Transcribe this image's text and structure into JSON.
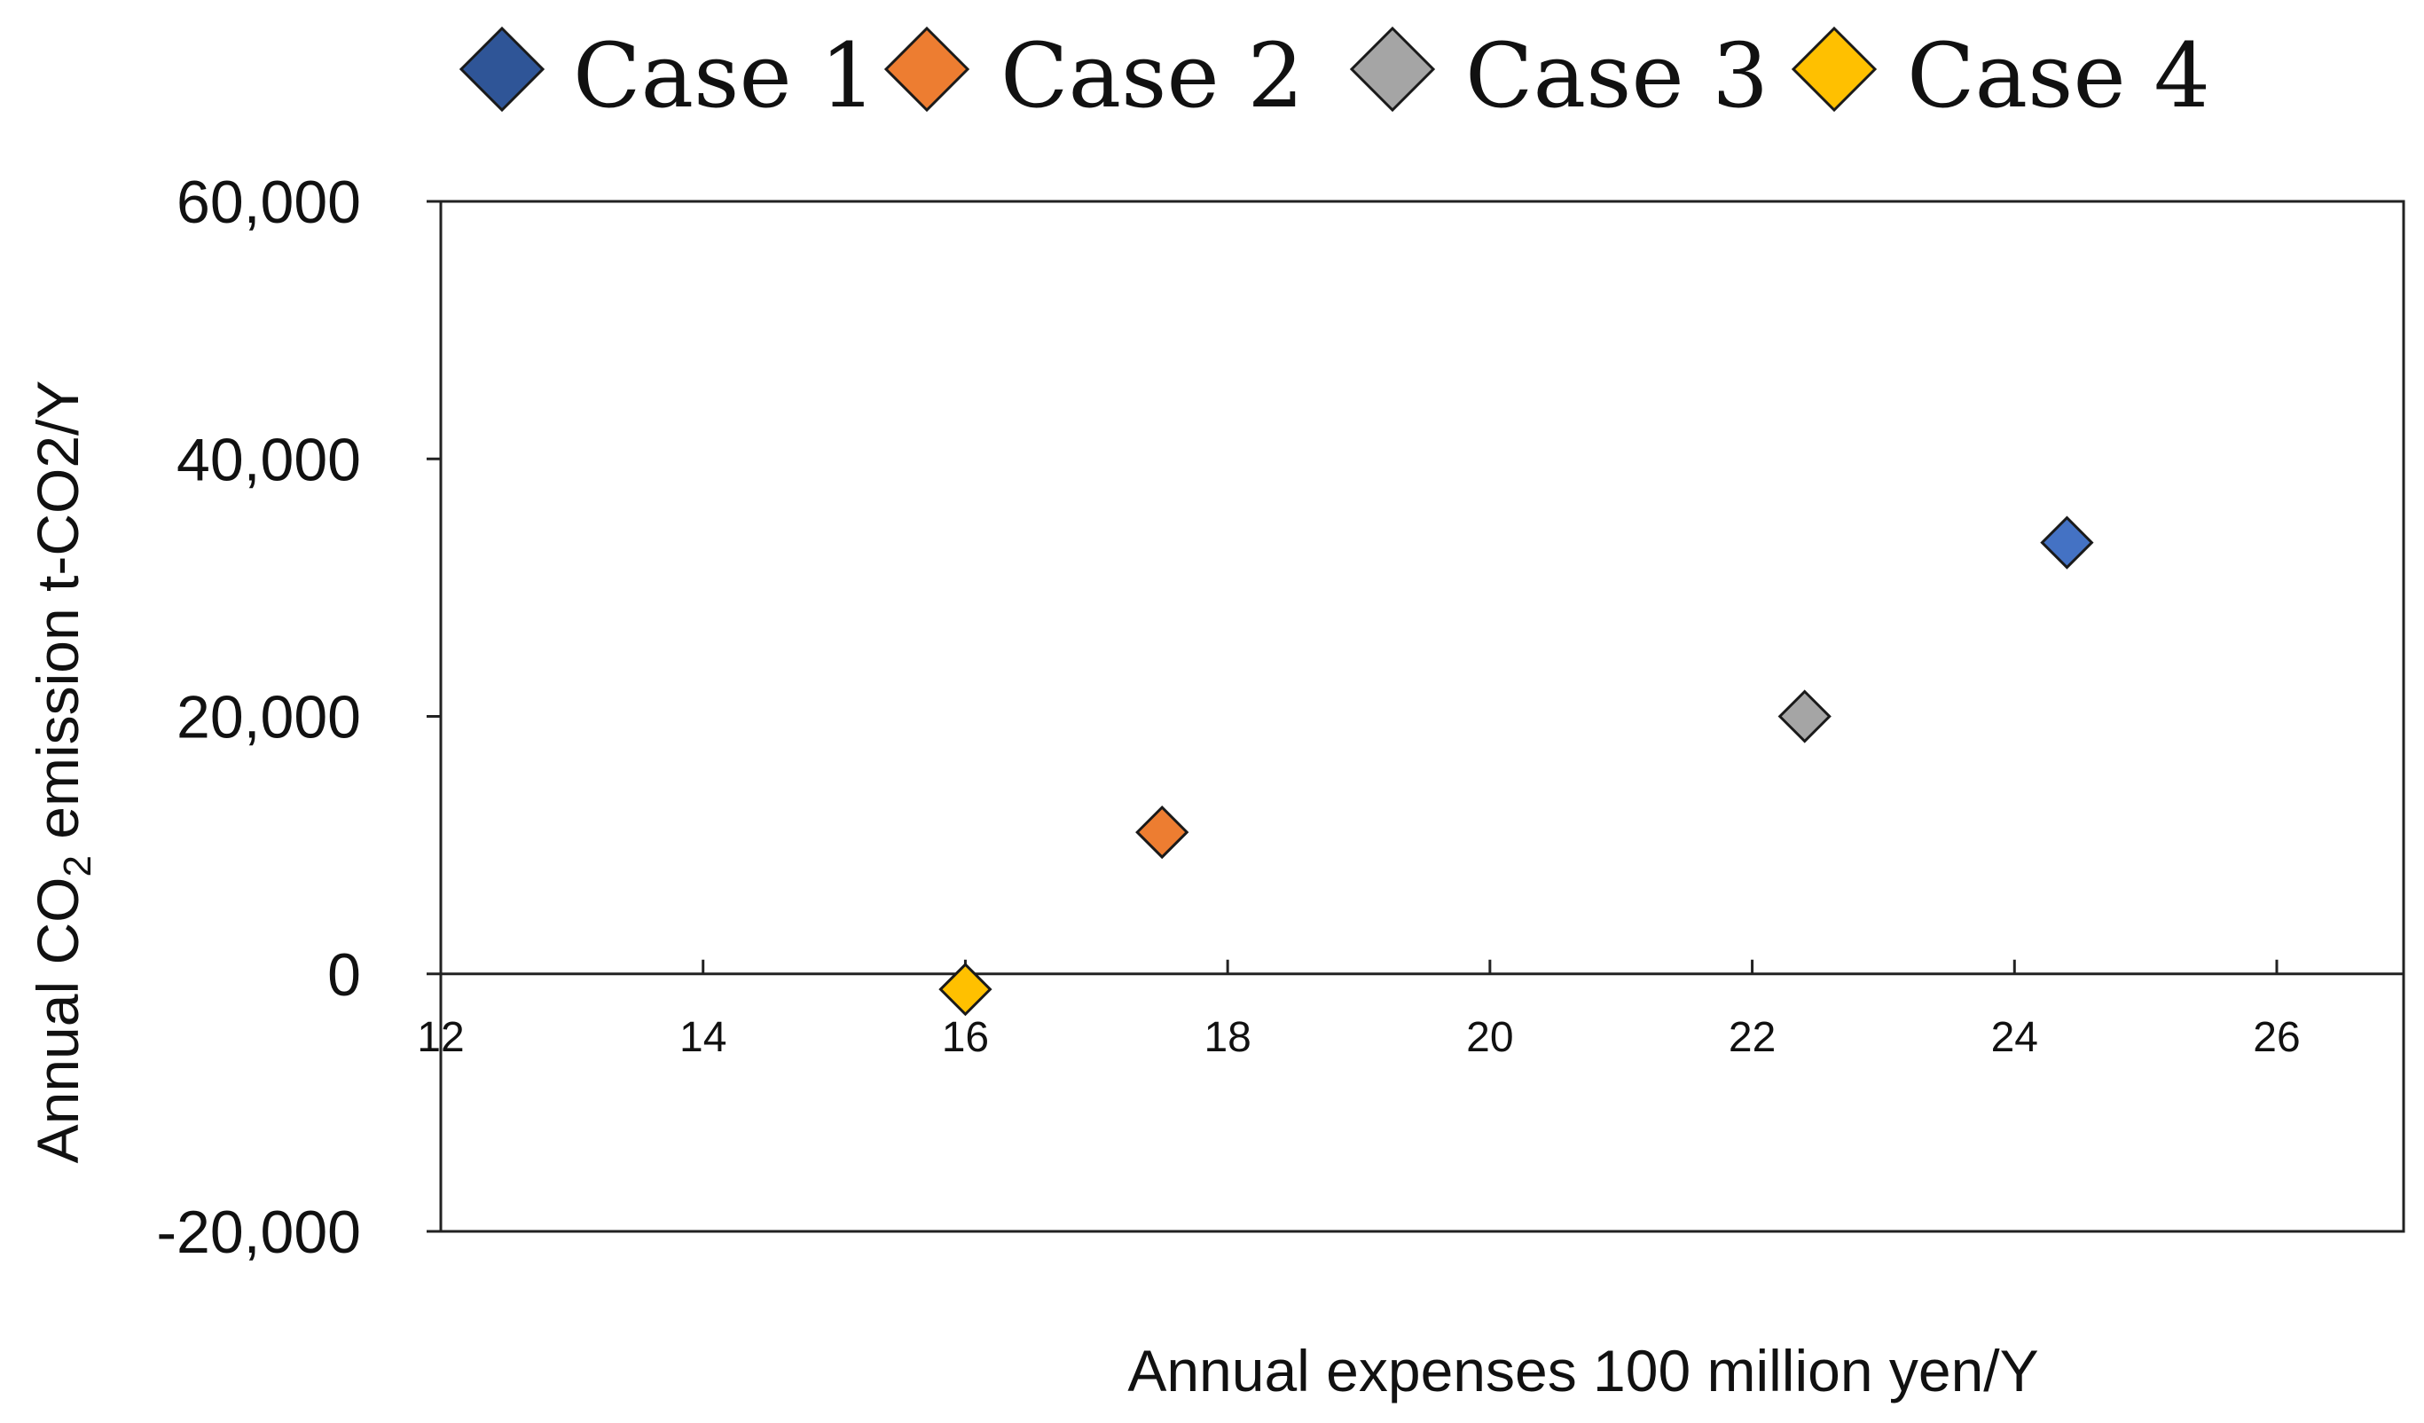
{
  "chart_data": {
    "type": "scatter",
    "title": "",
    "xlabel": "Annual expenses 100 million yen/Y",
    "ylabel": {
      "prefix": "Annual CO",
      "subscript": "2",
      "suffix": " emission t-CO2/Y"
    },
    "xlim": [
      12,
      27
    ],
    "ylim": [
      -20000,
      60000
    ],
    "x_ticks": [
      12,
      14,
      16,
      18,
      20,
      22,
      24,
      26
    ],
    "x_tick_labels": [
      "12",
      "14",
      "16",
      "18",
      "20",
      "22",
      "24",
      "26"
    ],
    "y_ticks": [
      -20000,
      0,
      20000,
      40000,
      60000
    ],
    "y_tick_labels": [
      "-20,000",
      "0",
      "20,000",
      "40,000",
      "60,000"
    ],
    "grid": false,
    "legend_position": "top",
    "marker": "diamond",
    "series": [
      {
        "name": "Case 1",
        "color": "#4472C4",
        "legend_color": "#2F5597",
        "x": [
          24.4
        ],
        "y": [
          33500
        ]
      },
      {
        "name": "Case 2",
        "color": "#ED7D31",
        "legend_color": "#ED7D31",
        "x": [
          17.5
        ],
        "y": [
          11000
        ]
      },
      {
        "name": "Case 3",
        "color": "#A5A5A5",
        "legend_color": "#A5A5A5",
        "x": [
          22.4
        ],
        "y": [
          20000
        ]
      },
      {
        "name": "Case 4",
        "color": "#FFC000",
        "legend_color": "#FFC000",
        "x": [
          16.0
        ],
        "y": [
          -1200
        ]
      }
    ]
  }
}
